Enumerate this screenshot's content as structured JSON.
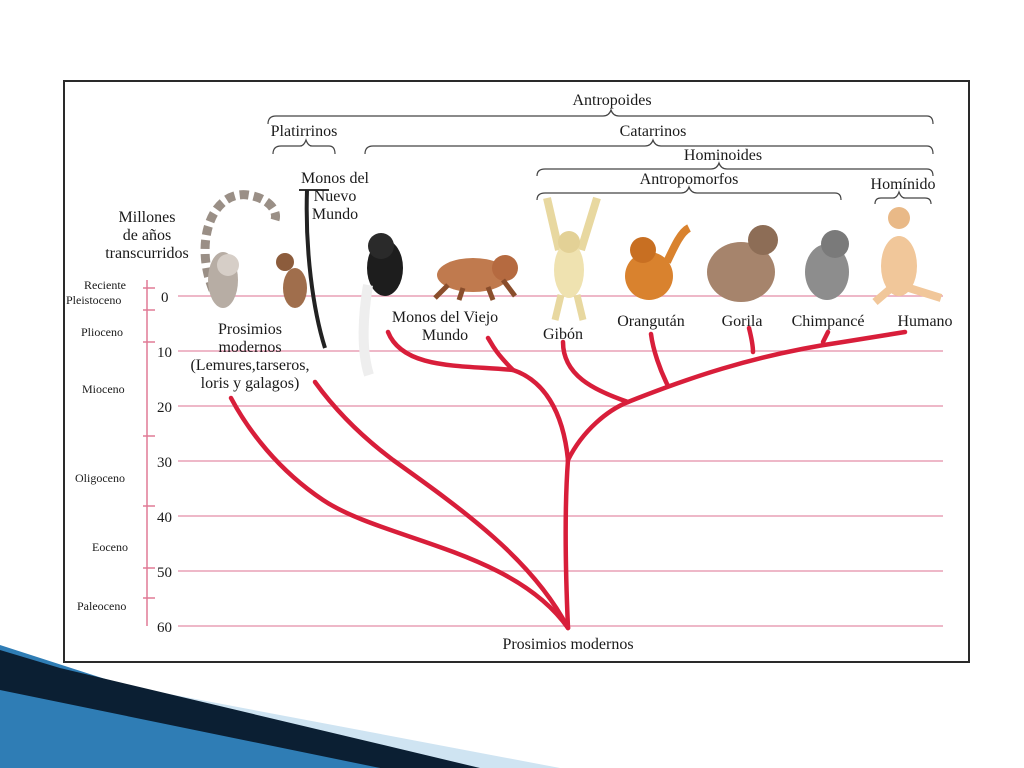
{
  "figure": {
    "axis_title": "Millones de años transcurridos",
    "axis_title_lines": [
      "Millones",
      "de años",
      "transcurridos"
    ],
    "ticks": [
      "0",
      "10",
      "20",
      "30",
      "40",
      "50",
      "60"
    ],
    "epochs": [
      {
        "label": "Reciente"
      },
      {
        "label": "Pleistoceno"
      },
      {
        "label": "Plioceno"
      },
      {
        "label": "Mioceno"
      },
      {
        "label": "Oligoceno"
      },
      {
        "label": "Eoceno"
      },
      {
        "label": "Paleoceno"
      }
    ],
    "groups": {
      "antropoides": "Antropoides",
      "platirrinos": "Platirrinos",
      "catarrinos": "Catarrinos",
      "hominoides": "Hominoides",
      "antropomorfos": "Antropomorfos",
      "hominido": "Homínido"
    },
    "taxa": {
      "prosimios_modernos": [
        "Prosimios",
        "modernos",
        "(Lemures,tarseros,",
        "loris y galagos)"
      ],
      "monos_nuevo_mundo": [
        "Monos del",
        "Nuevo",
        "Mundo"
      ],
      "monos_viejo_mundo": [
        "Monos del Viejo",
        "Mundo"
      ],
      "gibon": "Gibón",
      "orangutan": "Orangután",
      "gorila": "Gorila",
      "chimpance": "Chimpancé",
      "humano": "Humano"
    },
    "root_label": "Prosimios modernos",
    "colors": {
      "branch": "#d81e3a",
      "gridline": "#e8a0b6",
      "axis": "#e07a96",
      "bracket": "#444444",
      "slide_dark": "#0b1f33",
      "slide_blue": "#2f7db5",
      "slide_light": "#cfe4f2"
    }
  }
}
